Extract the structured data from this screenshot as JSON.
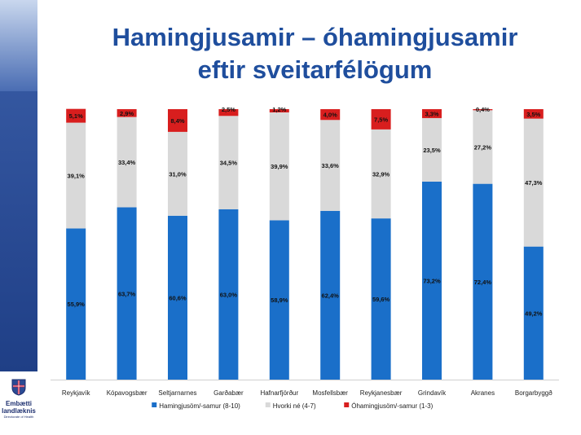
{
  "slide": {
    "title_line1": "Hamingjusamir – óhamingjusamir",
    "title_line2": "eftir sveitarfélögum",
    "logo_line1": "Embætti",
    "logo_line2": "landlæknis",
    "logo_line3": "Directorate of Health"
  },
  "chart_data": {
    "type": "bar",
    "stacked": true,
    "percent_stacked": true,
    "categories": [
      "Reykjavík",
      "Kópavogsbær",
      "Seltjarnarnes",
      "Garðabær",
      "Hafnarfjörður",
      "Mosfellsbær",
      "Reykjanesbær",
      "Grindavík",
      "Akranes",
      "Borgarbyggð"
    ],
    "series": [
      {
        "name": "Hamingjusöm/-samur (8-10)",
        "color": "#1a6fc9",
        "values": [
          55.9,
          63.7,
          60.6,
          63.0,
          58.9,
          62.4,
          59.6,
          73.2,
          72.4,
          49.2
        ],
        "labels": [
          "55,9%",
          "63,7%",
          "60,6%",
          "63,0%",
          "58,9%",
          "62,4%",
          "59,6%",
          "73,2%",
          "72,4%",
          "49,2%"
        ]
      },
      {
        "name": "Hvorki né (4-7)",
        "color": "#d9d9d9",
        "values": [
          39.1,
          33.4,
          31.0,
          34.5,
          39.9,
          33.6,
          32.9,
          23.5,
          27.2,
          47.3
        ],
        "labels": [
          "39,1%",
          "33,4%",
          "31,0%",
          "34,5%",
          "39,9%",
          "33,6%",
          "32,9%",
          "23,5%",
          "27,2%",
          "47,3%"
        ]
      },
      {
        "name": "Óhamingjusöm/-samur (1-3)",
        "color": "#d81e1e",
        "values": [
          5.1,
          2.9,
          8.4,
          2.5,
          1.2,
          4.0,
          7.5,
          3.3,
          0.4,
          3.5
        ],
        "labels": [
          "5,1%",
          "2,9%",
          "8,4%",
          "2,5%",
          "1,2%",
          "4,0%",
          "7,5%",
          "3,3%",
          "0,4%",
          "3,5%"
        ]
      }
    ],
    "ylim": [
      0,
      100
    ],
    "grid": false,
    "legend_position": "bottom"
  }
}
